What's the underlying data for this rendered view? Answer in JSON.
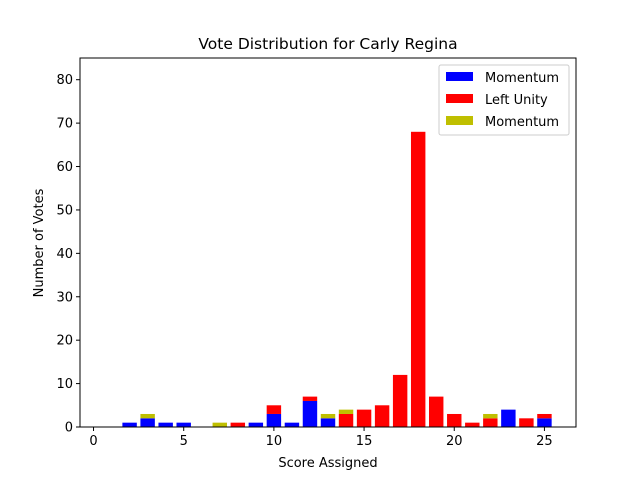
{
  "chart_data": {
    "type": "bar",
    "stacked": true,
    "title": "Vote Distribution for Carly Regina",
    "xlabel": "Score Assigned",
    "ylabel": "Number of Votes",
    "xlim": [
      -0.75,
      26.75
    ],
    "ylim": [
      0,
      85
    ],
    "xticks": [
      0,
      5,
      10,
      15,
      20,
      25
    ],
    "yticks": [
      0,
      10,
      20,
      30,
      40,
      50,
      60,
      70,
      80
    ],
    "grid": false,
    "legend": "top-right",
    "x": [
      2,
      3,
      4,
      5,
      7,
      8,
      9,
      10,
      11,
      12,
      13,
      14,
      15,
      16,
      17,
      18,
      19,
      20,
      21,
      22,
      23,
      24,
      25
    ],
    "series": [
      {
        "name": "Momentum",
        "color": "#0000ff",
        "values": [
          1,
          2,
          1,
          1,
          0,
          0,
          1,
          3,
          1,
          6,
          2,
          0,
          0,
          0,
          0,
          0,
          0,
          0,
          0,
          0,
          4,
          0,
          2
        ]
      },
      {
        "name": "Left Unity",
        "color": "#ff0000",
        "values": [
          0,
          0,
          0,
          0,
          0,
          1,
          0,
          2,
          0,
          1,
          0,
          3,
          4,
          5,
          12,
          68,
          7,
          3,
          1,
          2,
          0,
          2,
          1
        ]
      },
      {
        "name": "Momentum",
        "color": "#bfbf00",
        "values": [
          0,
          1,
          0,
          0,
          1,
          0,
          0,
          0,
          0,
          0,
          1,
          1,
          0,
          0,
          0,
          0,
          0,
          0,
          0,
          1,
          0,
          0,
          0
        ]
      }
    ]
  }
}
